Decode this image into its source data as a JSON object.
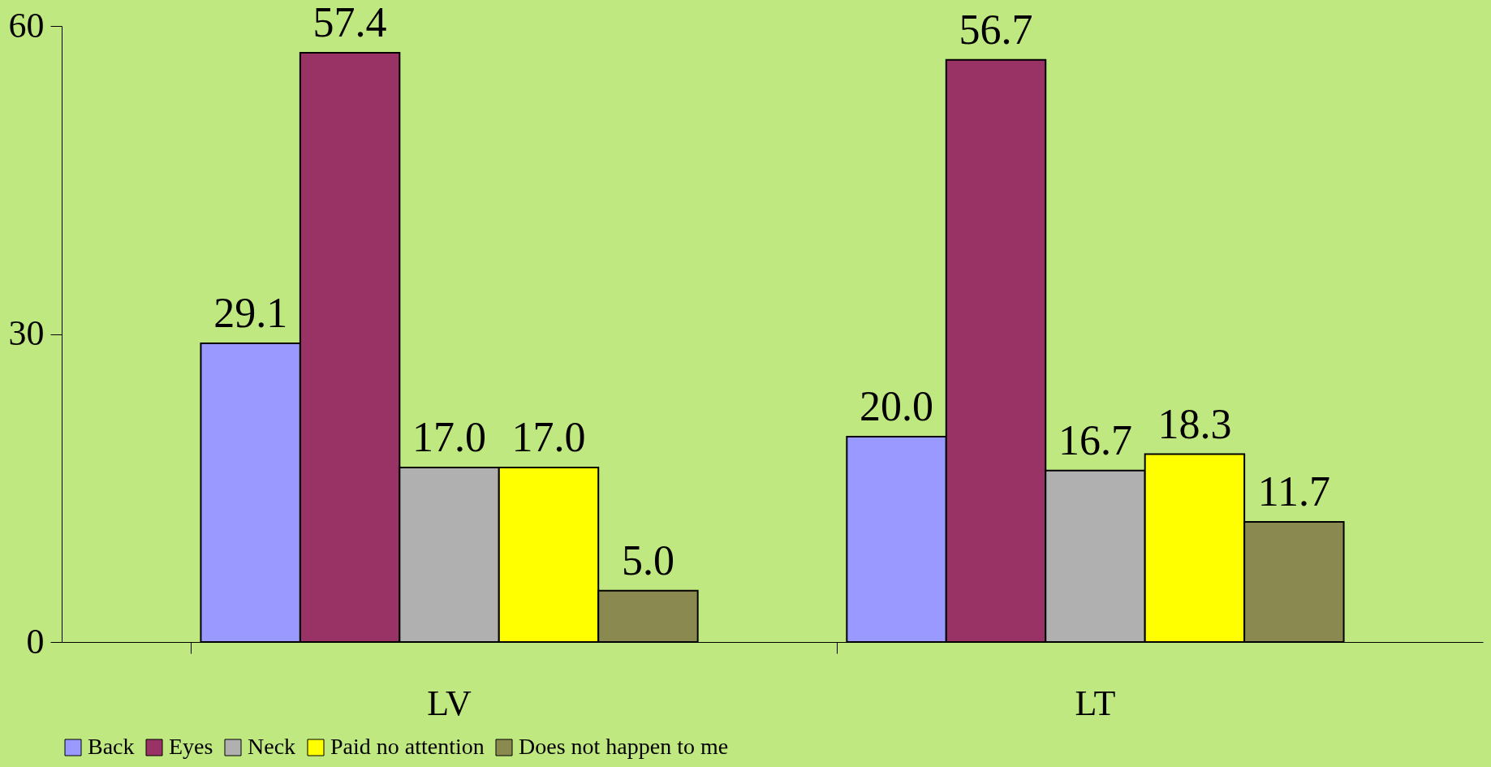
{
  "chart_data": {
    "type": "bar",
    "categories": [
      "LV",
      "LT"
    ],
    "series": [
      {
        "name": "Back",
        "color": "#9999ff",
        "values": [
          29.1,
          20
        ],
        "value_labels": [
          "29.1",
          "20.0"
        ]
      },
      {
        "name": "Eyes",
        "color": "#993366",
        "values": [
          57.4,
          56.7
        ],
        "value_labels": [
          "57.4",
          "56.7"
        ]
      },
      {
        "name": "Neck",
        "color": "#b0b0b0",
        "values": [
          17,
          16.7
        ],
        "value_labels": [
          "17.0",
          "16.7"
        ]
      },
      {
        "name": "Paid no attention",
        "color": "#ffff00",
        "values": [
          17,
          18.3
        ],
        "value_labels": [
          "17.0",
          "18.3"
        ]
      },
      {
        "name": "Does not happen to me",
        "color": "#8a8a50",
        "values": [
          5,
          11.7
        ],
        "value_labels": [
          "5.0",
          "11.7"
        ]
      }
    ],
    "ylim": [
      0,
      60
    ],
    "yticks": [
      0,
      30,
      60
    ],
    "grid": false,
    "legend": "bottom"
  }
}
